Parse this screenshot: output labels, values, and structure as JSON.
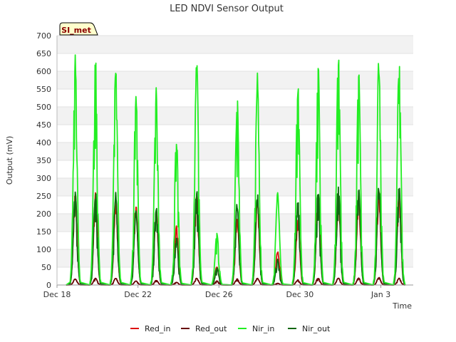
{
  "chart_data": {
    "type": "line",
    "title": "LED NDVI Sensor Output",
    "badge": "SI_met",
    "xlabel": "Time",
    "ylabel": "Output (mV)",
    "ylim": [
      0,
      700
    ],
    "yticks": [
      0,
      50,
      100,
      150,
      200,
      250,
      300,
      350,
      400,
      450,
      500,
      550,
      600,
      650,
      700
    ],
    "xlim": [
      0,
      17.6
    ],
    "xticks": [
      {
        "x": 0,
        "label": "Dec 18"
      },
      {
        "x": 4,
        "label": "Dec 22"
      },
      {
        "x": 8,
        "label": "Dec 26"
      },
      {
        "x": 12,
        "label": "Dec 30"
      },
      {
        "x": 16,
        "label": "Jan 3"
      }
    ],
    "grid": true,
    "legend_position": "bottom",
    "days_x": [
      0.9,
      1.9,
      2.9,
      3.9,
      4.9,
      5.9,
      6.9,
      7.9,
      8.9,
      9.9,
      10.9,
      11.9,
      12.9,
      13.9,
      14.9,
      15.9,
      16.9
    ],
    "series": [
      {
        "name": "Red_in",
        "color": "#dd1111",
        "peaks": [
          270,
          268,
          250,
          230,
          220,
          175,
          270,
          55,
          195,
          250,
          100,
          200,
          265,
          275,
          260,
          275,
          270
        ]
      },
      {
        "name": "Red_out",
        "color": "#660000",
        "peaks": [
          18,
          20,
          20,
          12,
          14,
          8,
          20,
          12,
          18,
          20,
          5,
          15,
          20,
          20,
          20,
          22,
          20
        ]
      },
      {
        "name": "Nir_in",
        "color": "#22ee22",
        "peaks": [
          670,
          660,
          645,
          562,
          570,
          432,
          658,
          150,
          545,
          618,
          268,
          590,
          650,
          675,
          622,
          660,
          655
        ]
      },
      {
        "name": "Nir_out",
        "color": "#116611",
        "peaks": [
          270,
          270,
          270,
          215,
          230,
          140,
          280,
          50,
          240,
          270,
          75,
          255,
          278,
          293,
          285,
          292,
          292
        ]
      }
    ]
  }
}
